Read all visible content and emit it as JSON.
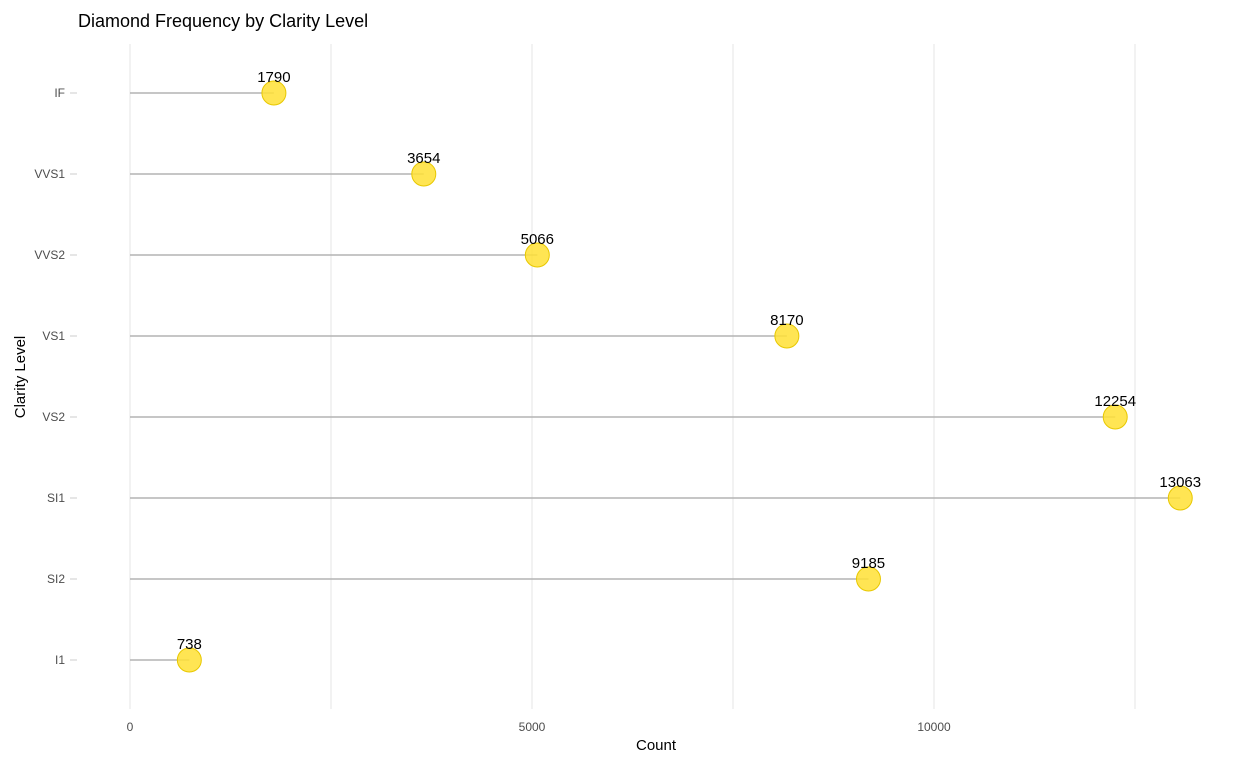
{
  "chart_data": {
    "type": "lollipop",
    "title": "Diamond Frequency by Clarity Level",
    "xlabel": "Count",
    "ylabel": "Clarity Level",
    "categories": [
      "IF",
      "VVS1",
      "VVS2",
      "VS1",
      "VS2",
      "SI1",
      "SI2",
      "I1"
    ],
    "values": [
      1790,
      3654,
      5066,
      8170,
      12254,
      13063,
      9185,
      738
    ],
    "xlim": [
      0,
      13063
    ],
    "x_ticks": [
      0,
      5000,
      10000
    ],
    "x_minor_gridlines": [
      2500,
      7500,
      12500
    ],
    "grid": true,
    "legend": "none",
    "colors": {
      "point_fill": "#FFE135",
      "point_stroke": "#E8C800",
      "stem": "#b3b3b3",
      "grid": "#e5e5e5",
      "tick": "#cccccc"
    }
  }
}
